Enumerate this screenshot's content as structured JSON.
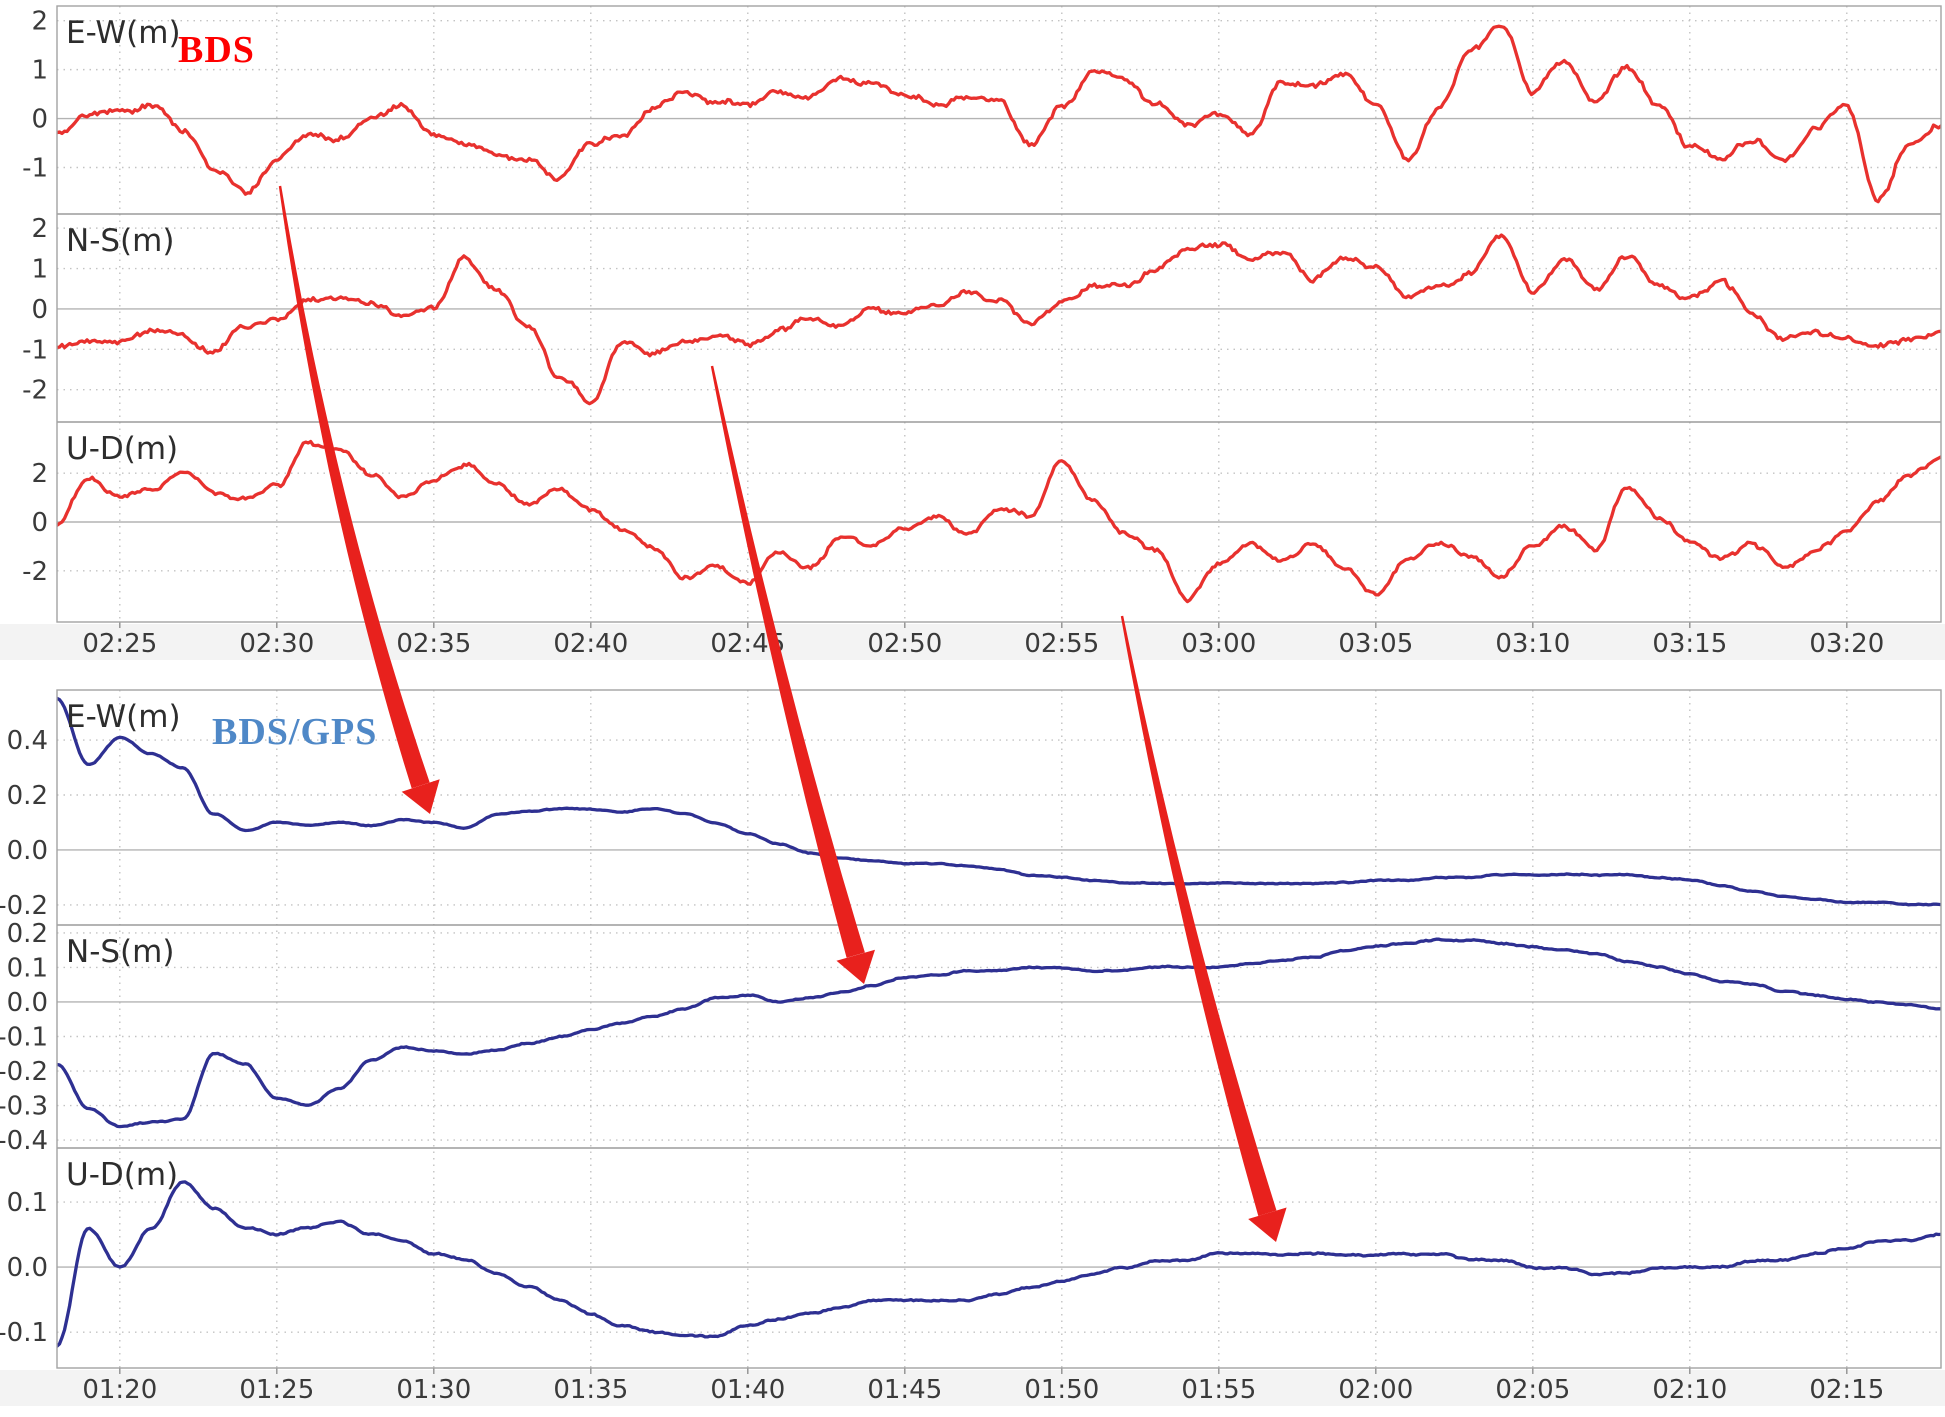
{
  "annotations": {
    "bds": {
      "text": "BDS",
      "color": "#fe0000"
    },
    "bdsgps": {
      "text": "BDS/GPS",
      "color": "#4f88c7"
    }
  },
  "style": {
    "grid_dotted_color": "#c3c3c3",
    "zero_line_color": "#b3b3b3",
    "border_color": "#a3a3a3",
    "tick_text_color": "#3a3a3a",
    "panel_label_color": "#2d2d2d",
    "xlabel_band_color": "#f3f3f3"
  },
  "arrow_color": "#e8211d",
  "arrows": [
    {
      "from": [
        280,
        186
      ],
      "to": [
        430,
        814
      ],
      "bend": 26
    },
    {
      "from": [
        712,
        366
      ],
      "to": [
        864,
        984
      ],
      "bend": 12
    },
    {
      "from": [
        1122,
        616
      ],
      "to": [
        1276,
        1242
      ],
      "bend": 16
    }
  ],
  "chart_data": [
    {
      "type": "line",
      "legend": "BDS",
      "line_color": "#e8312e",
      "x_span_min": 60,
      "x_ticks": [
        {
          "label": "02:25",
          "min": 2
        },
        {
          "label": "02:30",
          "min": 7
        },
        {
          "label": "02:35",
          "min": 12
        },
        {
          "label": "02:40",
          "min": 17
        },
        {
          "label": "02:45",
          "min": 22
        },
        {
          "label": "02:50",
          "min": 27
        },
        {
          "label": "02:55",
          "min": 32
        },
        {
          "label": "03:00",
          "min": 37
        },
        {
          "label": "03:05",
          "min": 42
        },
        {
          "label": "03:10",
          "min": 47
        },
        {
          "label": "03:15",
          "min": 52
        },
        {
          "label": "03:20",
          "min": 57
        }
      ],
      "panels": [
        {
          "ylabel": "E-W(m)",
          "yticks": [
            [
              "2",
              2
            ],
            [
              "1",
              1
            ],
            [
              "0",
              0
            ],
            [
              "-1",
              -1
            ]
          ],
          "ylim": [
            -1.95,
            2.3
          ],
          "noise": 0.13,
          "minute_values": [
            -0.3,
            0.05,
            0.15,
            0.3,
            -0.3,
            -1.1,
            -1.5,
            -0.85,
            -0.35,
            -0.4,
            0.0,
            0.3,
            -0.3,
            -0.55,
            -0.7,
            -0.8,
            -1.2,
            -0.5,
            -0.35,
            0.25,
            0.5,
            0.35,
            0.2,
            0.55,
            0.45,
            0.8,
            0.65,
            0.4,
            0.3,
            0.5,
            0.3,
            -0.6,
            0.2,
            1.0,
            0.85,
            0.3,
            -0.2,
            0.1,
            -0.3,
            0.75,
            0.65,
            1.0,
            0.3,
            -0.8,
            0.2,
            1.4,
            1.9,
            0.5,
            1.2,
            0.3,
            1.1,
            0.2,
            -0.6,
            -0.8,
            -0.5,
            -0.9,
            -0.2,
            0.3,
            -1.7,
            -0.6,
            -0.1
          ]
        },
        {
          "ylabel": "N-S(m)",
          "yticks": [
            [
              "2",
              2
            ],
            [
              "1",
              1
            ],
            [
              "0",
              0
            ],
            [
              "-1",
              -1
            ],
            [
              "-2",
              -2
            ]
          ],
          "ylim": [
            -2.8,
            2.35
          ],
          "noise": 0.15,
          "minute_values": [
            -1.0,
            -0.85,
            -0.8,
            -0.55,
            -0.65,
            -1.05,
            -0.45,
            -0.3,
            0.2,
            0.3,
            0.15,
            -0.1,
            0.1,
            1.25,
            0.5,
            -0.4,
            -1.7,
            -2.3,
            -0.9,
            -1.05,
            -0.8,
            -0.65,
            -0.9,
            -0.5,
            -0.25,
            -0.45,
            0.0,
            -0.2,
            0.1,
            0.4,
            0.2,
            -0.45,
            0.1,
            0.5,
            0.6,
            1.0,
            1.4,
            1.55,
            1.2,
            1.4,
            0.8,
            1.2,
            1.0,
            0.3,
            0.6,
            0.9,
            1.8,
            0.4,
            1.2,
            0.5,
            1.3,
            0.6,
            0.3,
            0.7,
            -0.2,
            -0.8,
            -0.6,
            -0.7,
            -0.9,
            -0.75,
            -0.6
          ]
        },
        {
          "ylabel": "U-D(m)",
          "yticks": [
            [
              "2",
              2
            ],
            [
              "0",
              0
            ],
            [
              "-2",
              -2
            ]
          ],
          "ylim": [
            -4.1,
            4.1
          ],
          "noise": 0.2,
          "minute_values": [
            0.0,
            1.7,
            1.0,
            1.4,
            2.1,
            1.2,
            0.9,
            1.5,
            3.3,
            2.9,
            2.0,
            1.0,
            1.8,
            2.3,
            1.5,
            0.7,
            1.3,
            0.5,
            -0.3,
            -1.0,
            -2.3,
            -1.9,
            -2.5,
            -1.2,
            -1.8,
            -0.6,
            -1.0,
            -0.2,
            0.3,
            -0.4,
            0.6,
            0.2,
            2.4,
            0.8,
            -0.6,
            -1.2,
            -3.2,
            -1.8,
            -0.9,
            -1.5,
            -0.8,
            -1.9,
            -2.9,
            -1.6,
            -0.9,
            -1.4,
            -2.2,
            -1.0,
            -0.2,
            -1.1,
            1.4,
            0.3,
            -0.8,
            -1.5,
            -0.9,
            -1.8,
            -1.2,
            -0.4,
            0.8,
            1.9,
            2.6
          ]
        }
      ]
    },
    {
      "type": "line",
      "legend": "BDS/GPS",
      "line_color": "#2e3092",
      "x_span_min": 60,
      "x_ticks": [
        {
          "label": "01:20",
          "min": 2
        },
        {
          "label": "01:25",
          "min": 7
        },
        {
          "label": "01:30",
          "min": 12
        },
        {
          "label": "01:35",
          "min": 17
        },
        {
          "label": "01:40",
          "min": 22
        },
        {
          "label": "01:45",
          "min": 27
        },
        {
          "label": "01:50",
          "min": 32
        },
        {
          "label": "01:55",
          "min": 37
        },
        {
          "label": "02:00",
          "min": 42
        },
        {
          "label": "02:05",
          "min": 47
        },
        {
          "label": "02:10",
          "min": 52
        },
        {
          "label": "02:15",
          "min": 57
        }
      ],
      "panels": [
        {
          "ylabel": "E-W(m)",
          "yticks": [
            [
              "0.4",
              0.4
            ],
            [
              "0.2",
              0.2
            ],
            [
              "0.0",
              0
            ],
            [
              "-0.2",
              -0.2
            ]
          ],
          "ylim": [
            -0.273,
            0.582
          ],
          "noise": 0.004,
          "minute_values": [
            0.55,
            0.31,
            0.41,
            0.35,
            0.3,
            0.13,
            0.07,
            0.1,
            0.09,
            0.1,
            0.09,
            0.11,
            0.1,
            0.08,
            0.13,
            0.14,
            0.15,
            0.15,
            0.14,
            0.15,
            0.13,
            0.1,
            0.06,
            0.02,
            -0.01,
            -0.03,
            -0.04,
            -0.05,
            -0.05,
            -0.06,
            -0.07,
            -0.09,
            -0.1,
            -0.11,
            -0.12,
            -0.12,
            -0.12,
            -0.12,
            -0.12,
            -0.12,
            -0.12,
            -0.12,
            -0.11,
            -0.11,
            -0.1,
            -0.1,
            -0.09,
            -0.09,
            -0.09,
            -0.09,
            -0.09,
            -0.1,
            -0.11,
            -0.13,
            -0.15,
            -0.17,
            -0.18,
            -0.19,
            -0.19,
            -0.2,
            -0.2
          ]
        },
        {
          "ylabel": "N-S(m)",
          "yticks": [
            [
              "0.2",
              0.2
            ],
            [
              "0.1",
              0.1
            ],
            [
              "0.0",
              0
            ],
            [
              "-0.1",
              -0.1
            ],
            [
              "-0.2",
              -0.2
            ],
            [
              "-0.3",
              -0.3
            ],
            [
              "-0.4",
              -0.4
            ]
          ],
          "ylim": [
            -0.423,
            0.223
          ],
          "noise": 0.004,
          "minute_values": [
            -0.18,
            -0.31,
            -0.36,
            -0.35,
            -0.34,
            -0.15,
            -0.18,
            -0.28,
            -0.3,
            -0.25,
            -0.17,
            -0.13,
            -0.14,
            -0.15,
            -0.14,
            -0.12,
            -0.1,
            -0.08,
            -0.06,
            -0.04,
            -0.02,
            0.01,
            0.02,
            0.0,
            0.01,
            0.03,
            0.05,
            0.07,
            0.08,
            0.09,
            0.09,
            0.1,
            0.1,
            0.09,
            0.09,
            0.1,
            0.1,
            0.1,
            0.11,
            0.12,
            0.13,
            0.15,
            0.16,
            0.17,
            0.18,
            0.18,
            0.17,
            0.16,
            0.15,
            0.14,
            0.12,
            0.1,
            0.08,
            0.06,
            0.05,
            0.03,
            0.02,
            0.01,
            0.0,
            -0.01,
            -0.02
          ]
        },
        {
          "ylabel": "U-D(m)",
          "yticks": [
            [
              "0.1",
              0.1
            ],
            [
              "0.0",
              0
            ],
            [
              "-0.1",
              -0.1
            ]
          ],
          "ylim": [
            -0.155,
            0.183
          ],
          "noise": 0.003,
          "minute_values": [
            -0.12,
            0.06,
            0.0,
            0.06,
            0.13,
            0.09,
            0.06,
            0.05,
            0.06,
            0.07,
            0.05,
            0.04,
            0.02,
            0.01,
            -0.01,
            -0.03,
            -0.05,
            -0.07,
            -0.09,
            -0.1,
            -0.105,
            -0.105,
            -0.09,
            -0.08,
            -0.07,
            -0.06,
            -0.05,
            -0.05,
            -0.05,
            -0.05,
            -0.04,
            -0.03,
            -0.02,
            -0.01,
            0.0,
            0.01,
            0.01,
            0.02,
            0.02,
            0.02,
            0.02,
            0.02,
            0.02,
            0.02,
            0.02,
            0.01,
            0.01,
            0.0,
            0.0,
            -0.01,
            -0.01,
            0.0,
            0.0,
            0.0,
            0.01,
            0.01,
            0.02,
            0.03,
            0.04,
            0.04,
            0.05
          ]
        }
      ]
    }
  ]
}
